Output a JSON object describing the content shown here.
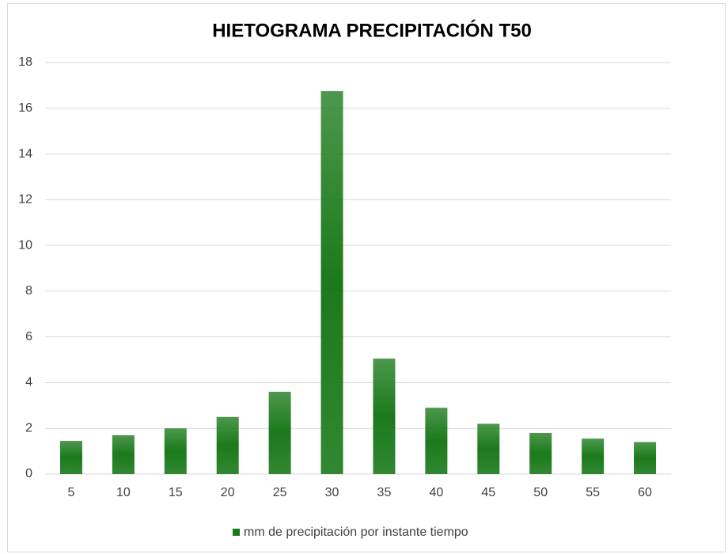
{
  "chart_data": {
    "type": "bar",
    "title": "HIETOGRAMA PRECIPITACIÓN T50",
    "categories": [
      "5",
      "10",
      "15",
      "20",
      "25",
      "30",
      "35",
      "40",
      "45",
      "50",
      "55",
      "60"
    ],
    "series": [
      {
        "name": "mm de precipitación por instante tiempo",
        "color": "#1b7a1b",
        "values": [
          1.45,
          1.7,
          2.0,
          2.5,
          3.6,
          16.75,
          5.05,
          2.9,
          2.2,
          1.8,
          1.55,
          1.4
        ]
      }
    ],
    "ylim": [
      0,
      18
    ],
    "yticks": [
      0,
      2,
      4,
      6,
      8,
      10,
      12,
      14,
      16,
      18
    ],
    "grid": true,
    "legend": "bottom"
  }
}
